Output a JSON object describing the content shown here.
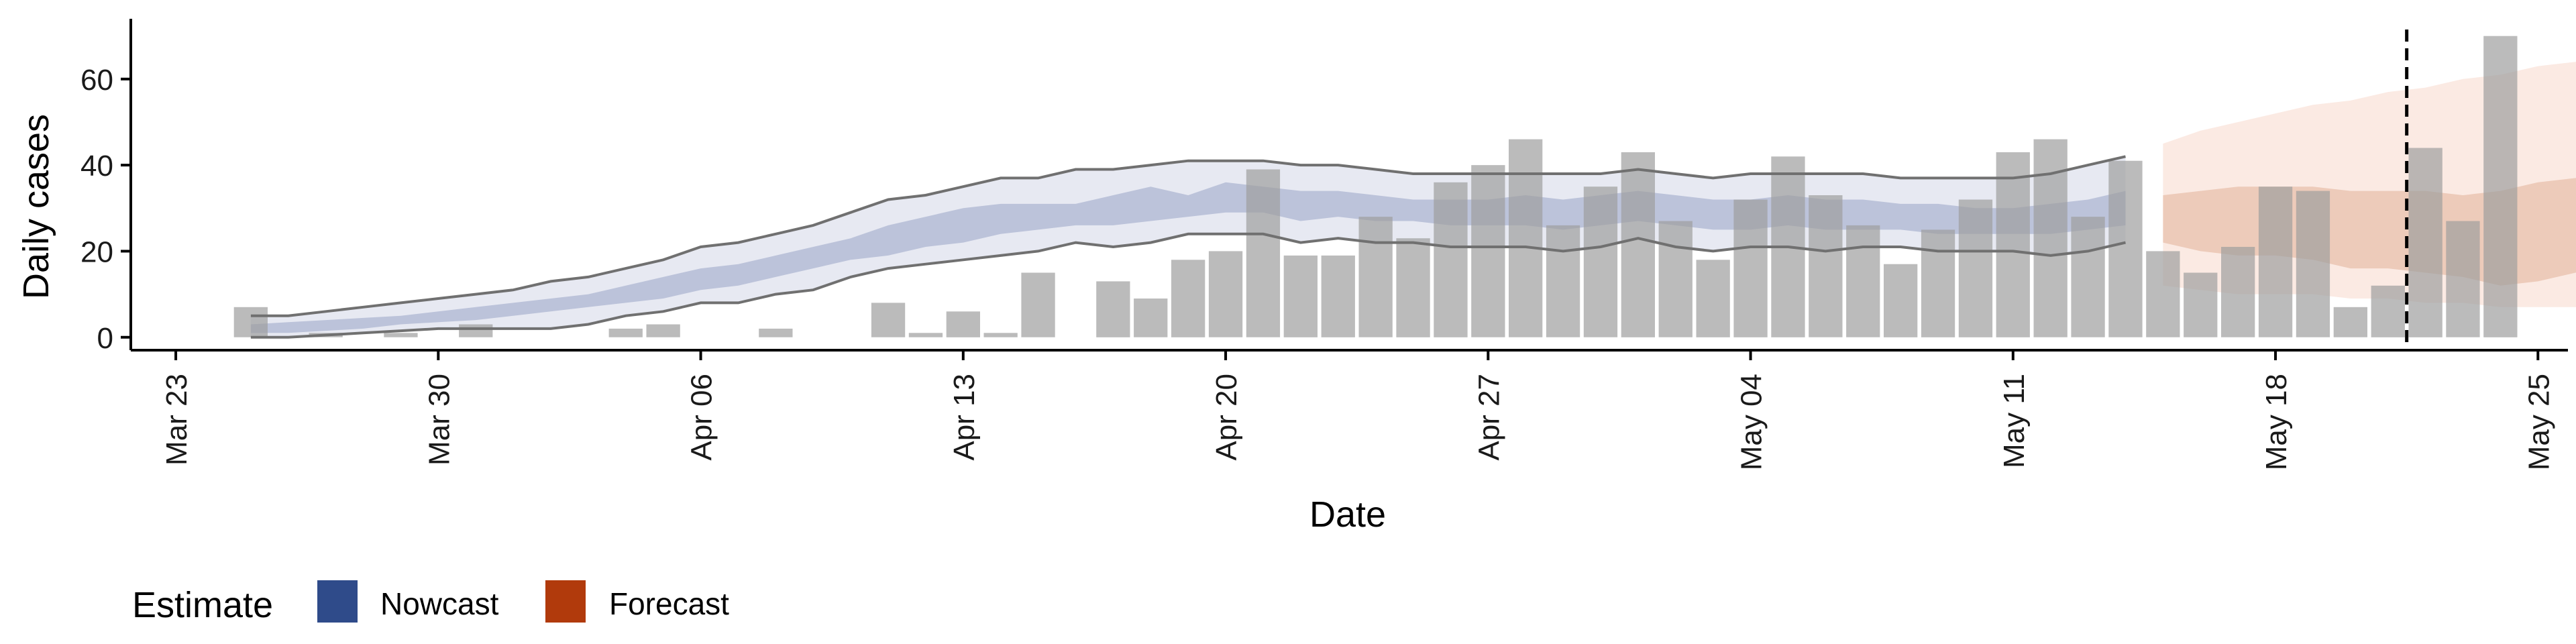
{
  "chart_data": {
    "type": "bar",
    "xlabel": "Date",
    "ylabel": "Daily cases",
    "x_start_date": "2020-03-23",
    "xlim": [
      -1.2,
      63.8
    ],
    "ylim": [
      -3,
      74
    ],
    "y_ticks": [
      0,
      20,
      40,
      60
    ],
    "x_ticks": [
      {
        "day": 0,
        "label": "Mar 23"
      },
      {
        "day": 7,
        "label": "Mar 30"
      },
      {
        "day": 14,
        "label": "Apr 06"
      },
      {
        "day": 21,
        "label": "Apr 13"
      },
      {
        "day": 28,
        "label": "Apr 20"
      },
      {
        "day": 35,
        "label": "Apr 27"
      },
      {
        "day": 42,
        "label": "May 04"
      },
      {
        "day": 49,
        "label": "May 11"
      },
      {
        "day": 56,
        "label": "May 18"
      },
      {
        "day": 63,
        "label": "May 25"
      }
    ],
    "bars": {
      "first_day": 2,
      "values": [
        7,
        0,
        1,
        0,
        1,
        0,
        3,
        0,
        0,
        0,
        2,
        3,
        0,
        0,
        2,
        0,
        0,
        8,
        1,
        6,
        1,
        15,
        0,
        13,
        9,
        18,
        20,
        39,
        19,
        19,
        28,
        23,
        36,
        40,
        46,
        26,
        35,
        43,
        27,
        18,
        32,
        42,
        33,
        26,
        17,
        25,
        32,
        43,
        46,
        28,
        41,
        20,
        15,
        21,
        35,
        34,
        7,
        12,
        44,
        27,
        70
      ]
    },
    "nowcast_band_90": {
      "first_day": 2,
      "lower": [
        0,
        0,
        0.5,
        1,
        1.5,
        2,
        2,
        2,
        2,
        3,
        5,
        6,
        8,
        8,
        10,
        11,
        14,
        16,
        17,
        18,
        19,
        20,
        22,
        21,
        22,
        24,
        24,
        24,
        22,
        23,
        22,
        22,
        21,
        21,
        21,
        20,
        21,
        23,
        21,
        20,
        21,
        21,
        20,
        21,
        21,
        20,
        20,
        20,
        19,
        20,
        22
      ],
      "upper": [
        5,
        5,
        6,
        7,
        8,
        9,
        10,
        11,
        13,
        14,
        16,
        18,
        21,
        22,
        24,
        26,
        29,
        32,
        33,
        35,
        37,
        37,
        39,
        39,
        40,
        41,
        41,
        41,
        40,
        40,
        39,
        38,
        38,
        38,
        38,
        38,
        38,
        39,
        38,
        37,
        38,
        38,
        38,
        38,
        37,
        37,
        37,
        37,
        38,
        40,
        42
      ]
    },
    "nowcast_band_50": {
      "first_day": 2,
      "lower": [
        1,
        1,
        1.5,
        2,
        3,
        3.5,
        4,
        5,
        6,
        7,
        8,
        9,
        11,
        12,
        14,
        16,
        18,
        19,
        21,
        22,
        24,
        25,
        26,
        26,
        27,
        28,
        29,
        29,
        27,
        28,
        27,
        27,
        26,
        26,
        26,
        25,
        26,
        27,
        26,
        25,
        25,
        26,
        25,
        25,
        25,
        24,
        24,
        24,
        24,
        25,
        26
      ],
      "upper": [
        3,
        3.5,
        4,
        4.5,
        5,
        6,
        7,
        8,
        9,
        10,
        12,
        14,
        16,
        17,
        19,
        21,
        23,
        26,
        28,
        30,
        31,
        31,
        31,
        33,
        35,
        33,
        36,
        35,
        34,
        34,
        33,
        32,
        32,
        32,
        33,
        32,
        33,
        34,
        33,
        32,
        32,
        33,
        32,
        32,
        31,
        31,
        30,
        30,
        31,
        32,
        34
      ]
    },
    "forecast_band_90": {
      "first_day": 53,
      "lower": [
        12,
        11,
        10,
        10,
        10,
        9,
        9,
        8,
        8,
        7,
        7,
        7,
        6,
        6
      ],
      "upper": [
        45,
        48,
        50,
        52,
        54,
        55,
        57,
        58,
        60,
        61,
        63,
        64,
        66,
        66
      ]
    },
    "forecast_band_50": {
      "first_day": 53,
      "lower": [
        22,
        20,
        19,
        19,
        18,
        16,
        16,
        15,
        14,
        12,
        13,
        15,
        16,
        17
      ],
      "upper": [
        33,
        34,
        35,
        35,
        35,
        34,
        34,
        34,
        33,
        34,
        36,
        37,
        38,
        38
      ]
    },
    "vline_day": 59.5,
    "legend": {
      "title": "Estimate",
      "position": "bottom-left",
      "items": [
        {
          "label": "Nowcast",
          "color": "#2F4B8A"
        },
        {
          "label": "Forecast",
          "color": "#B13A0C"
        }
      ]
    },
    "colors": {
      "bar": "#BDBDBD",
      "nowcast_outer": "#E7E9F2",
      "nowcast_inner": "#BCC3DA",
      "forecast_outer": "#FBEAE3",
      "forecast_inner": "#EDCBBA",
      "band_line": "#707070",
      "axis": "#000000"
    }
  }
}
